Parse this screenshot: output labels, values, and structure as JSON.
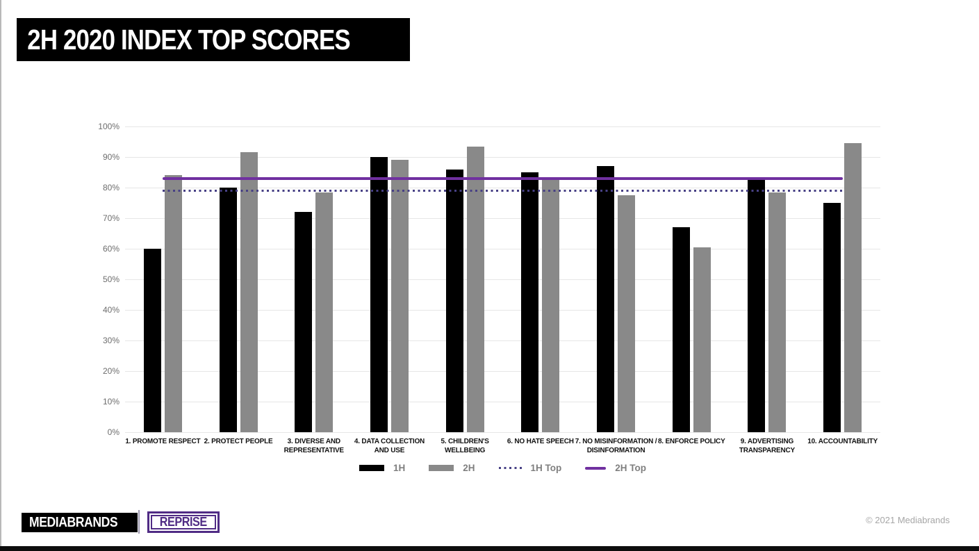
{
  "page": {
    "title": "2H 2020 INDEX TOP SCORES",
    "footer_brand": "MEDIABRANDS",
    "footer_sub_brand": "REPRISE",
    "copyright": "© 2021 Mediabrands"
  },
  "colors": {
    "bar_1h": "#000000",
    "bar_2h": "#898989",
    "line_1h_top": "#474085",
    "line_2h_top": "#7030a0",
    "gridline": "#e6e6e6",
    "axis_text": "#6d6d6d",
    "legend_text": "#7f7f7f",
    "reprise_purple": "#502c85",
    "copyright_text": "#a6a6a6"
  },
  "chart_data": {
    "type": "bar",
    "title": "2H 2020 INDEX TOP SCORES",
    "categories": [
      "1. PROMOTE RESPECT",
      "2. PROTECT PEOPLE",
      "3. DIVERSE AND REPRESENTATIVE",
      "4. DATA COLLECTION AND USE",
      "5. CHILDREN'S WELLBEING",
      "6. NO HATE SPEECH",
      "7. NO MISINFORMATION / DISINFORMATION",
      "8. ENFORCE POLICY",
      "9. ADVERTISING TRANSPARENCY",
      "10. ACCOUNTABILITY"
    ],
    "series": [
      {
        "name": "1H",
        "type": "bar",
        "color_key": "bar_1h",
        "values": [
          60,
          80,
          72,
          90,
          86,
          85,
          87,
          67,
          83,
          75
        ]
      },
      {
        "name": "2H",
        "type": "bar",
        "color_key": "bar_2h",
        "values": [
          84,
          91.5,
          78.5,
          89,
          93.5,
          83,
          77.5,
          60.5,
          78.5,
          94.5
        ]
      },
      {
        "name": "1H Top",
        "type": "line",
        "style": "dotted",
        "color_key": "line_1h_top",
        "value": 79
      },
      {
        "name": "2H Top",
        "type": "line",
        "style": "solid",
        "color_key": "line_2h_top",
        "value": 83
      }
    ],
    "xlabel": "",
    "ylabel": "",
    "ylim": [
      0,
      100
    ],
    "ytick_step": 10,
    "ytick_labels": [
      "0%",
      "10%",
      "20%",
      "30%",
      "40%",
      "50%",
      "60%",
      "70%",
      "80%",
      "90%",
      "100%"
    ],
    "grid": true,
    "legend_position": "bottom"
  }
}
